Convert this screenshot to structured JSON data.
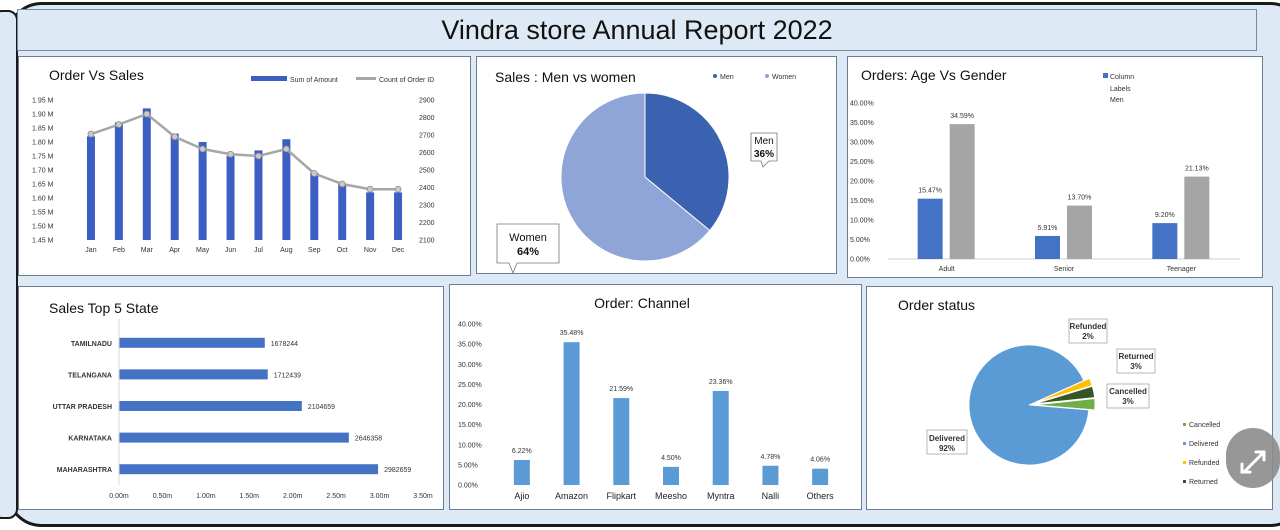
{
  "report_title": "Vindra store Annual Report 2022",
  "chart_data": [
    {
      "id": "order-vs-sales",
      "type": "bar+line",
      "title": "Order Vs Sales",
      "categories": [
        "Jan",
        "Feb",
        "Mar",
        "Apr",
        "May",
        "Jun",
        "Jul",
        "Aug",
        "Sep",
        "Oct",
        "Nov",
        "Dec"
      ],
      "series": [
        {
          "name": "Sum of Amount",
          "axis": "left",
          "values": [
            1.82,
            1.87,
            1.92,
            1.83,
            1.8,
            1.75,
            1.77,
            1.81,
            1.69,
            1.65,
            1.62,
            1.62
          ]
        },
        {
          "name": "Count of Order ID",
          "axis": "right",
          "values": [
            2705,
            2760,
            2820,
            2690,
            2620,
            2590,
            2580,
            2620,
            2480,
            2420,
            2390,
            2390
          ]
        }
      ],
      "ylim_left": [
        1.45,
        1.95
      ],
      "yticks_left": [
        "1.95 M",
        "1.90 M",
        "1.85 M",
        "1.80 M",
        "1.75 M",
        "1.70 M",
        "1.65 M",
        "1.60 M",
        "1.55 M",
        "1.50 M",
        "1.45 M"
      ],
      "ylim_right": [
        2100,
        2900
      ],
      "yticks_right": [
        "2900",
        "2800",
        "2700",
        "2600",
        "2500",
        "2400",
        "2300",
        "2200",
        "2100"
      ],
      "colors": {
        "bar": "#3d5fc4",
        "line": "#a6a6a6"
      }
    },
    {
      "id": "sales-men-women",
      "type": "pie",
      "title": "Sales : Men vs women",
      "legend": [
        "Men",
        "Women"
      ],
      "slices": [
        {
          "name": "Men",
          "value": 36,
          "label_name": "Men",
          "label_value": "36%",
          "color": "#3a62b0"
        },
        {
          "name": "Women",
          "value": 64,
          "label_name": "Women",
          "label_value": "64%",
          "color": "#8fa5d8"
        }
      ]
    },
    {
      "id": "orders-age-gender",
      "type": "bar",
      "title": "Orders: Age Vs Gender",
      "legend": [
        "Column",
        "Labels",
        "Men"
      ],
      "categories": [
        "Adult",
        "Senior",
        "Teenager"
      ],
      "series": [
        {
          "name": "Men",
          "values": [
            15.47,
            5.91,
            9.2
          ],
          "labels": [
            "15.47%",
            "5.91%",
            "9.20%"
          ],
          "color": "#4472c4"
        },
        {
          "name": "Women",
          "values": [
            34.59,
            13.7,
            21.13
          ],
          "labels": [
            "34.59%",
            "13.70%",
            "21.13%"
          ],
          "color": "#a5a5a5"
        }
      ],
      "ylim": [
        0,
        40
      ],
      "yticks": [
        "40.00%",
        "35.00%",
        "30.00%",
        "25.00%",
        "20.00%",
        "15.00%",
        "10.00%",
        "5.00%",
        "0.00%"
      ]
    },
    {
      "id": "sales-top5-state",
      "type": "bar",
      "orientation": "horizontal",
      "title": "Sales Top 5 State",
      "categories": [
        "TAMILNADU",
        "TELANGANA",
        "UTTAR PRADESH",
        "KARNATAKA",
        "MAHARASHTRA"
      ],
      "values": [
        1678244,
        1712439,
        2104659,
        2646358,
        2982659
      ],
      "labels": [
        "1678244",
        "1712439",
        "2104659",
        "2646358",
        "2982659"
      ],
      "xlim": [
        0,
        3500000
      ],
      "xticks": [
        "0.00m",
        "0.50m",
        "1.00m",
        "1.50m",
        "2.00m",
        "2.50m",
        "3.00m",
        "3.50m"
      ],
      "color": "#4472c4"
    },
    {
      "id": "order-channel",
      "type": "bar",
      "title": "Order: Channel",
      "categories": [
        "Ajio",
        "Amazon",
        "Flipkart",
        "Meesho",
        "Myntra",
        "Nalli",
        "Others"
      ],
      "values": [
        6.22,
        35.48,
        21.59,
        4.5,
        23.36,
        4.78,
        4.06
      ],
      "labels": [
        "6.22%",
        "35.48%",
        "21.59%",
        "4.50%",
        "23.36%",
        "4.78%",
        "4.06%"
      ],
      "ylim": [
        0,
        40
      ],
      "yticks": [
        "40.00%",
        "35.00%",
        "30.00%",
        "25.00%",
        "20.00%",
        "15.00%",
        "10.00%",
        "5.00%",
        "0.00%"
      ],
      "color": "#5b9bd5"
    },
    {
      "id": "order-status",
      "type": "pie",
      "title": "Order status",
      "legend": [
        "Cancelled",
        "Delivered",
        "Refunded",
        "Returned"
      ],
      "slices": [
        {
          "name": "Delivered",
          "value": 92,
          "label_name": "Delivered",
          "label_value": "92%",
          "color": "#5b9bd5"
        },
        {
          "name": "Refunded",
          "value": 2,
          "label_name": "Refunded",
          "label_value": "2%",
          "color": "#ffc000"
        },
        {
          "name": "Returned",
          "value": 3,
          "label_name": "Returned",
          "label_value": "3%",
          "color": "#375623"
        },
        {
          "name": "Cancelled",
          "value": 3,
          "label_name": "Cancelled",
          "label_value": "3%",
          "color": "#70ad47"
        }
      ]
    }
  ]
}
